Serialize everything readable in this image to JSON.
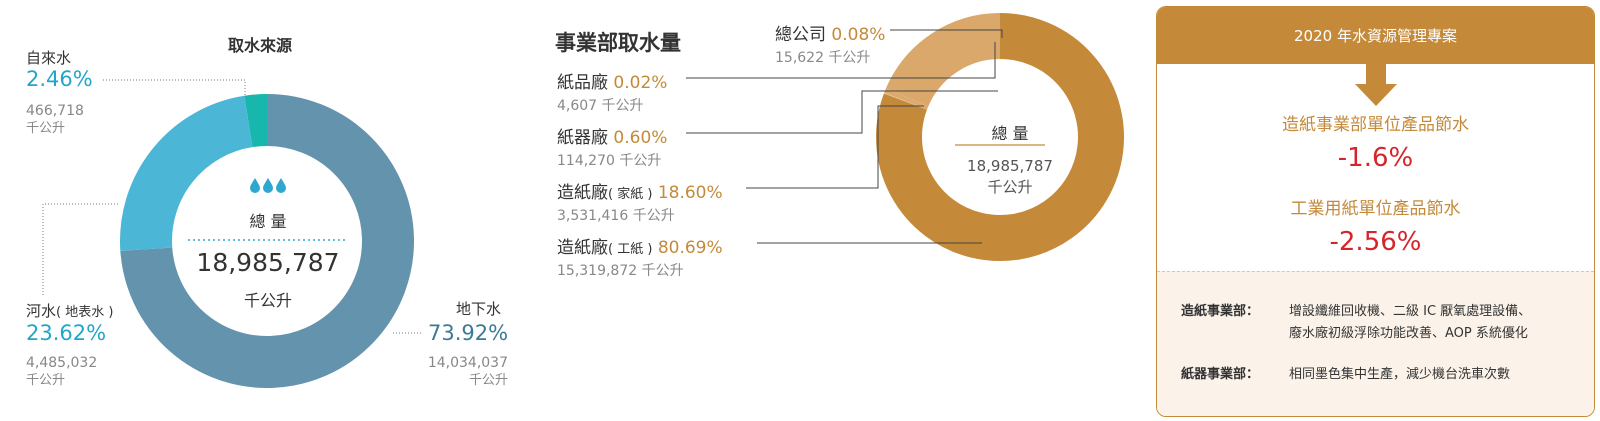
{
  "left_chart": {
    "title": "取水來源",
    "center": {
      "label": "總 量",
      "value": "18,985,787",
      "unit": "千公升"
    },
    "legend": [
      {
        "name": "自來水",
        "pct": "2.46%",
        "amount": "466,718",
        "unit": "千公升"
      },
      {
        "name_main": "河水",
        "name_note": "( 地表水 )",
        "pct": "23.62%",
        "amount": "4,485,032",
        "unit": "千公升"
      },
      {
        "name": "地下水",
        "pct": "73.92%",
        "amount": "14,034,037",
        "unit": "千公升"
      }
    ],
    "colors": {
      "tap": "#17b7ad",
      "river": "#4bb6d6",
      "ground": "#6493ae",
      "drop": "#2fa8d0"
    }
  },
  "right_chart": {
    "title": "事業部取水量",
    "center": {
      "label": "總 量",
      "value": "18,985,787",
      "unit": "千公升"
    },
    "rows": [
      {
        "name": "總公司",
        "pct": "0.08%",
        "amount": "15,622 千公升"
      },
      {
        "name": "紙品廠",
        "pct": "0.02%",
        "amount": "4,607 千公升"
      },
      {
        "name": "紙器廠",
        "pct": "0.60%",
        "amount": "114,270 千公升"
      },
      {
        "name_main": "造紙廠",
        "name_note": "( 家紙 )",
        "pct": "18.60%",
        "amount": "3,531,416 千公升"
      },
      {
        "name_main": "造紙廠",
        "name_note": "( 工紙 )",
        "pct": "80.69%",
        "amount": "15,319,872 千公升"
      }
    ],
    "colors": {
      "main": "#c48a3a",
      "light": "#d9a86a"
    }
  },
  "chart_data": [
    {
      "type": "pie",
      "title": "取水來源",
      "categories": [
        "自來水",
        "河水 ( 地表水 )",
        "地下水"
      ],
      "values": [
        2.46,
        23.62,
        73.92
      ],
      "amounts": [
        466718,
        4485032,
        14034037
      ],
      "unit": "千公升",
      "total": 18985787
    },
    {
      "type": "pie",
      "title": "事業部取水量",
      "categories": [
        "總公司",
        "紙品廠",
        "紙器廠",
        "造紙廠 ( 家紙 )",
        "造紙廠 ( 工紙 )"
      ],
      "values": [
        0.08,
        0.02,
        0.6,
        18.6,
        80.69
      ],
      "amounts": [
        15622,
        4607,
        114270,
        3531416,
        15319872
      ],
      "unit": "千公升",
      "total": 18985787
    }
  ],
  "panel": {
    "title": "2020 年水資源管理專案",
    "item1_label": "造紙事業部單位產品節水",
    "item1_value": "-1.6%",
    "item2_label": "工業用紙單位產品節水",
    "item2_value": "-2.56%",
    "dept1_name": "造紙事業部：",
    "dept1_line1": "增設纖維回收機、二級 IC 厭氧處理設備、",
    "dept1_line2": "廢水廠初級浮除功能改善、AOP 系統優化",
    "dept2_name": "紙器事業部：",
    "dept2_line1": "相同墨色集中生產，減少機台洗車次數"
  }
}
